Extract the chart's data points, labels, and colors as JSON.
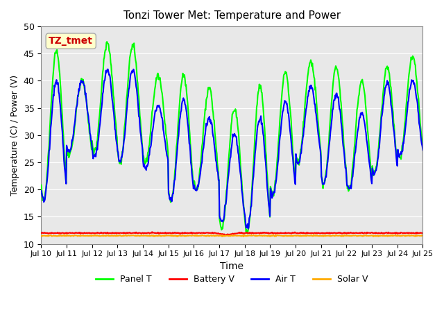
{
  "title": "Tonzi Tower Met: Temperature and Power",
  "xlabel": "Time",
  "ylabel": "Temperature (C) / Power (V)",
  "ylim": [
    10,
    50
  ],
  "xlim": [
    0,
    15
  ],
  "background_color": "#e8e8e8",
  "annotation_text": "TZ_tmet",
  "annotation_bg": "#ffffcc",
  "annotation_border": "#cccc00",
  "annotation_text_color": "#cc0000",
  "xtick_labels": [
    "Jul 10",
    "Jul 11",
    "Jul 12",
    "Jul 13",
    "Jul 14",
    "Jul 15",
    "Jul 16",
    "Jul 17",
    "Jul 18",
    "Jul 19",
    "Jul 20",
    "Jul 21",
    "Jul 22",
    "Jul 23",
    "Jul 24",
    "Jul 25"
  ],
  "ytick_values": [
    10,
    15,
    20,
    25,
    30,
    35,
    40,
    45,
    50
  ],
  "panel_T_color": "#00ff00",
  "battery_V_color": "#ff0000",
  "air_T_color": "#0000ff",
  "solar_V_color": "#ffaa00",
  "panel_T_lw": 1.5,
  "battery_V_lw": 1.5,
  "air_T_lw": 1.5,
  "solar_V_lw": 1.5,
  "legend_labels": [
    "Panel T",
    "Battery V",
    "Air T",
    "Solar V"
  ]
}
